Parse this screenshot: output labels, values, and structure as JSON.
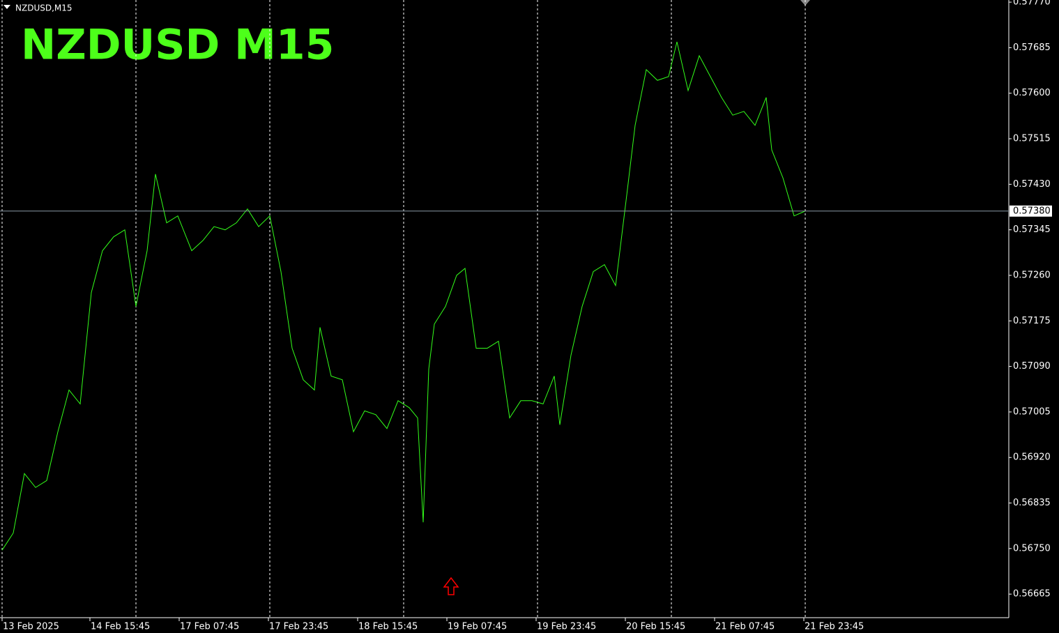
{
  "chart_data": {
    "type": "line",
    "title": "NZDUSD  M15",
    "symbol_label": "NZDUSD,M15",
    "x": [
      0,
      8,
      16,
      24,
      32,
      40,
      48,
      56,
      64,
      72,
      80,
      88,
      96,
      104,
      110,
      118,
      126,
      136,
      144,
      152,
      160,
      168,
      176,
      184,
      192,
      200,
      208,
      216,
      224,
      228,
      236,
      244,
      252,
      260,
      268,
      276,
      284,
      292,
      298,
      302,
      306,
      310,
      318,
      326,
      332,
      340,
      348,
      356,
      364,
      372,
      380,
      388,
      396,
      400,
      408,
      416,
      424,
      432,
      440,
      448,
      454,
      462,
      470,
      478,
      484,
      492,
      500,
      508,
      516,
      524,
      532,
      540,
      548,
      552,
      560,
      568,
      576
    ],
    "series": [
      {
        "name": "NZDUSD,M15",
        "color": "#33ff1a",
        "values": [
          0.56747,
          0.56779,
          0.5689,
          0.56864,
          0.56877,
          0.56968,
          0.57046,
          0.5702,
          0.57228,
          0.57306,
          0.57332,
          0.57345,
          0.57202,
          0.57306,
          0.57449,
          0.57358,
          0.57371,
          0.57306,
          0.57325,
          0.57351,
          0.57345,
          0.57358,
          0.57384,
          0.57351,
          0.57371,
          0.57267,
          0.57124,
          0.57065,
          0.57046,
          0.57163,
          0.57072,
          0.57065,
          0.56968,
          0.57007,
          0.57,
          0.56974,
          0.57026,
          0.57013,
          0.56994,
          0.56799,
          0.57085,
          0.57169,
          0.57202,
          0.5726,
          0.57273,
          0.57124,
          0.57124,
          0.57137,
          0.56994,
          0.57026,
          0.57026,
          0.5702,
          0.57072,
          0.56981,
          0.57111,
          0.57202,
          0.57267,
          0.5728,
          0.57241,
          0.5741,
          0.5754,
          0.57644,
          0.57624,
          0.57631,
          0.57696,
          0.57605,
          0.5767,
          0.57631,
          0.57592,
          0.57559,
          0.57566,
          0.5754,
          0.57592,
          0.57494,
          0.57442,
          0.57371,
          0.5738
        ]
      }
    ],
    "xlim": [
      -1.5,
      722
    ],
    "xticks": [
      {
        "value": 0,
        "label": "13 Feb 2025"
      },
      {
        "value": 63,
        "label": "14 Feb 15:45"
      },
      {
        "value": 127,
        "label": "17 Feb 07:45"
      },
      {
        "value": 191,
        "label": "17 Feb 23:45"
      },
      {
        "value": 255,
        "label": "18 Feb 15:45"
      },
      {
        "value": 319,
        "label": "19 Feb 07:45"
      },
      {
        "value": 383,
        "label": "19 Feb 23:45"
      },
      {
        "value": 447,
        "label": "20 Feb 15:45"
      },
      {
        "value": 511,
        "label": "21 Feb 07:45"
      },
      {
        "value": 575,
        "label": "21 Feb 23:45"
      }
    ],
    "xgrid": [
      0,
      96,
      192,
      288,
      384,
      480,
      576
    ],
    "ylim": [
      0.56621,
      0.57774
    ],
    "yticks": [
      {
        "value": 0.5777,
        "label": "0.57770"
      },
      0.57685,
      {
        "value": 0.576,
        "label": "0.57600"
      },
      0.57515,
      {
        "value": 0.5743,
        "label": "0.57430"
      },
      0.57345,
      {
        "value": 0.5726,
        "label": "0.57260"
      },
      0.57175,
      {
        "value": 0.5709,
        "label": "0.57090"
      },
      0.57005,
      {
        "value": 0.5692,
        "label": "0.56920"
      },
      0.56835,
      {
        "value": 0.5675,
        "label": "0.56750"
      },
      0.56665
    ],
    "current_price": {
      "value": 0.5738,
      "label": "0.57380"
    },
    "grid": true
  }
}
